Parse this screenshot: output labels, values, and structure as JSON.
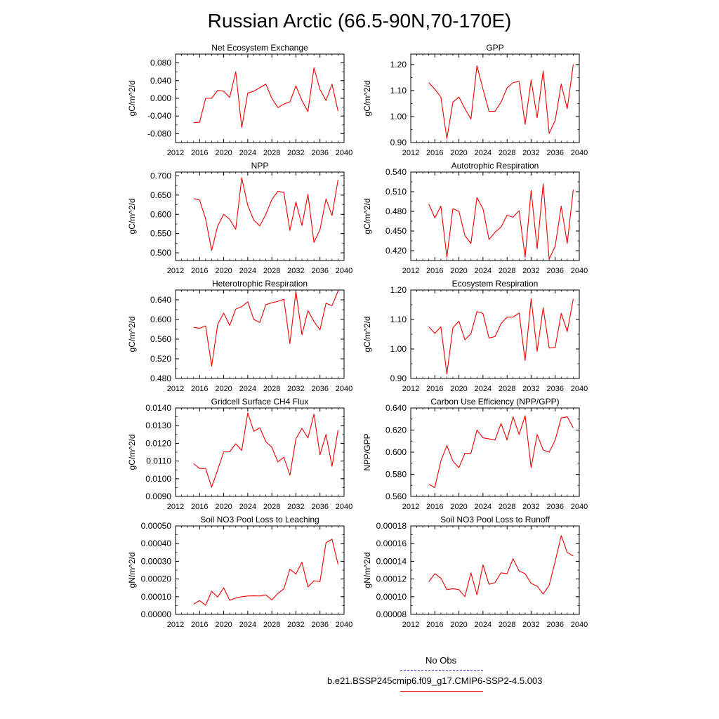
{
  "page": {
    "title": "Russian Arctic (66.5-90N,70-170E)"
  },
  "legend": {
    "obs_label": "No Obs",
    "obs_color": "#3333cc",
    "model_label": "b.e21.BSSP245cmip6.f09_g17.CMIP6-SSP2-4.5.003",
    "model_color": "#ee0000"
  },
  "x_axis": {
    "ticks": [
      2012,
      2016,
      2020,
      2024,
      2028,
      2032,
      2036,
      2040
    ],
    "range": [
      2012,
      2040
    ]
  },
  "chart_data": [
    {
      "type": "line",
      "title": "Net Ecosystem Exchange",
      "ylabel": "gC/m^2/d",
      "ylim": [
        -0.1,
        0.1
      ],
      "yticks": [
        "0.080",
        "0.040",
        "0.000",
        "-0.040",
        "-0.080"
      ],
      "ytick_values": [
        0.08,
        0.04,
        0.0,
        -0.04,
        -0.08
      ],
      "x": [
        2015,
        2016,
        2017,
        2018,
        2019,
        2020,
        2021,
        2022,
        2023,
        2024,
        2025,
        2026,
        2027,
        2028,
        2029,
        2030,
        2031,
        2032,
        2033,
        2034,
        2035,
        2036,
        2037,
        2038,
        2039
      ],
      "series": [
        {
          "values": [
            -0.055,
            -0.054,
            0.0,
            0.0,
            0.018,
            0.016,
            0.002,
            0.06,
            -0.066,
            0.012,
            0.016,
            0.024,
            0.032,
            0.0,
            -0.021,
            -0.013,
            -0.008,
            0.028,
            -0.005,
            -0.03,
            0.069,
            0.02,
            -0.005,
            0.032,
            -0.029
          ]
        }
      ]
    },
    {
      "type": "line",
      "title": "GPP",
      "ylabel": "gC/m^2/d",
      "ylim": [
        0.9,
        1.24
      ],
      "yticks": [
        "1.20",
        "1.10",
        "1.00",
        "0.90"
      ],
      "ytick_values": [
        1.2,
        1.1,
        1.0,
        0.9
      ],
      "x": [
        2015,
        2016,
        2017,
        2018,
        2019,
        2020,
        2021,
        2022,
        2023,
        2024,
        2025,
        2026,
        2027,
        2028,
        2029,
        2030,
        2031,
        2032,
        2033,
        2034,
        2035,
        2036,
        2037,
        2038,
        2039
      ],
      "series": [
        {
          "values": [
            1.13,
            1.105,
            1.075,
            0.915,
            1.055,
            1.075,
            1.03,
            0.99,
            1.195,
            1.105,
            1.02,
            1.02,
            1.055,
            1.11,
            1.13,
            1.135,
            0.97,
            1.14,
            0.995,
            1.175,
            0.935,
            0.985,
            1.125,
            1.03,
            1.2
          ]
        }
      ]
    },
    {
      "type": "line",
      "title": "NPP",
      "ylabel": "gC/m^2/d",
      "ylim": [
        0.48,
        0.71
      ],
      "yticks": [
        "0.700",
        "0.650",
        "0.600",
        "0.550",
        "0.500"
      ],
      "ytick_values": [
        0.7,
        0.65,
        0.6,
        0.55,
        0.5
      ],
      "x": [
        2015,
        2016,
        2017,
        2018,
        2019,
        2020,
        2021,
        2022,
        2023,
        2024,
        2025,
        2026,
        2027,
        2028,
        2029,
        2030,
        2031,
        2032,
        2033,
        2034,
        2035,
        2036,
        2037,
        2038,
        2039
      ],
      "series": [
        {
          "values": [
            0.641,
            0.637,
            0.588,
            0.506,
            0.57,
            0.6,
            0.587,
            0.561,
            0.695,
            0.623,
            0.585,
            0.57,
            0.6,
            0.638,
            0.66,
            0.657,
            0.558,
            0.632,
            0.571,
            0.652,
            0.527,
            0.56,
            0.64,
            0.597,
            0.69
          ]
        }
      ]
    },
    {
      "type": "line",
      "title": "Autotrophic Respiration",
      "ylabel": "gC/m^2/d",
      "ylim": [
        0.405,
        0.54
      ],
      "yticks": [
        "0.540",
        "0.510",
        "0.480",
        "0.450",
        "0.420"
      ],
      "ytick_values": [
        0.54,
        0.51,
        0.48,
        0.45,
        0.42
      ],
      "x": [
        2015,
        2016,
        2017,
        2018,
        2019,
        2020,
        2021,
        2022,
        2023,
        2024,
        2025,
        2026,
        2027,
        2028,
        2029,
        2030,
        2031,
        2032,
        2033,
        2034,
        2035,
        2036,
        2037,
        2038,
        2039
      ],
      "series": [
        {
          "values": [
            0.491,
            0.47,
            0.488,
            0.41,
            0.484,
            0.48,
            0.443,
            0.431,
            0.501,
            0.484,
            0.437,
            0.448,
            0.456,
            0.474,
            0.471,
            0.481,
            0.41,
            0.512,
            0.423,
            0.522,
            0.407,
            0.427,
            0.488,
            0.431,
            0.513
          ]
        }
      ]
    },
    {
      "type": "line",
      "title": "Heterotrophic Respiration",
      "ylabel": "gC/m^2/d",
      "ylim": [
        0.48,
        0.66
      ],
      "yticks": [
        "0.640",
        "0.600",
        "0.560",
        "0.520",
        "0.480"
      ],
      "ytick_values": [
        0.64,
        0.6,
        0.56,
        0.52,
        0.48
      ],
      "x": [
        2015,
        2016,
        2017,
        2018,
        2019,
        2020,
        2021,
        2022,
        2023,
        2024,
        2025,
        2026,
        2027,
        2028,
        2029,
        2030,
        2031,
        2032,
        2033,
        2034,
        2035,
        2036,
        2037,
        2038,
        2039
      ],
      "series": [
        {
          "values": [
            0.584,
            0.582,
            0.587,
            0.505,
            0.59,
            0.613,
            0.588,
            0.621,
            0.626,
            0.636,
            0.6,
            0.594,
            0.63,
            0.634,
            0.637,
            0.641,
            0.551,
            0.657,
            0.569,
            0.618,
            0.596,
            0.579,
            0.633,
            0.628,
            0.658
          ]
        }
      ]
    },
    {
      "type": "line",
      "title": "Ecosystem Respiration",
      "ylabel": "gC/m^2/d",
      "ylim": [
        0.9,
        1.2
      ],
      "yticks": [
        "1.20",
        "1.10",
        "1.00",
        "0.90"
      ],
      "ytick_values": [
        1.2,
        1.1,
        1.0,
        0.9
      ],
      "x": [
        2015,
        2016,
        2017,
        2018,
        2019,
        2020,
        2021,
        2022,
        2023,
        2024,
        2025,
        2026,
        2027,
        2028,
        2029,
        2030,
        2031,
        2032,
        2033,
        2034,
        2035,
        2036,
        2037,
        2038,
        2039
      ],
      "series": [
        {
          "values": [
            1.075,
            1.053,
            1.075,
            0.915,
            1.072,
            1.094,
            1.031,
            1.052,
            1.127,
            1.12,
            1.037,
            1.042,
            1.086,
            1.108,
            1.108,
            1.122,
            0.961,
            1.17,
            0.992,
            1.14,
            1.003,
            1.005,
            1.121,
            1.059,
            1.17
          ]
        }
      ]
    },
    {
      "type": "line",
      "title": "Gridcell Surface CH4 Flux",
      "ylabel": "gC/m^2/d",
      "ylim": [
        0.009,
        0.014
      ],
      "yticks": [
        "0.0140",
        "0.0130",
        "0.0120",
        "0.0110",
        "0.0100",
        "0.0090"
      ],
      "ytick_values": [
        0.014,
        0.013,
        0.012,
        0.011,
        0.01,
        0.009
      ],
      "x": [
        2015,
        2016,
        2017,
        2018,
        2019,
        2020,
        2021,
        2022,
        2023,
        2024,
        2025,
        2026,
        2027,
        2028,
        2029,
        2030,
        2031,
        2032,
        2033,
        2034,
        2035,
        2036,
        2037,
        2038,
        2039
      ],
      "series": [
        {
          "values": [
            0.01085,
            0.01058,
            0.01058,
            0.00952,
            0.0105,
            0.01152,
            0.01152,
            0.01198,
            0.0116,
            0.01372,
            0.01268,
            0.01288,
            0.0121,
            0.01178,
            0.01095,
            0.01122,
            0.0102,
            0.01225,
            0.01285,
            0.0123,
            0.01365,
            0.01135,
            0.0125,
            0.0107,
            0.01275
          ]
        }
      ]
    },
    {
      "type": "line",
      "title": "Carbon Use Efficiency (NPP/GPP)",
      "ylabel": "NPP/GPP",
      "ylim": [
        0.56,
        0.64
      ],
      "yticks": [
        "0.640",
        "0.620",
        "0.600",
        "0.580",
        "0.560"
      ],
      "ytick_values": [
        0.64,
        0.62,
        0.6,
        0.58,
        0.56
      ],
      "x": [
        2015,
        2016,
        2017,
        2018,
        2019,
        2020,
        2021,
        2022,
        2023,
        2024,
        2025,
        2026,
        2027,
        2028,
        2029,
        2030,
        2031,
        2032,
        2033,
        2034,
        2035,
        2036,
        2037,
        2038,
        2039
      ],
      "series": [
        {
          "values": [
            0.571,
            0.568,
            0.592,
            0.606,
            0.592,
            0.586,
            0.599,
            0.599,
            0.62,
            0.613,
            0.612,
            0.611,
            0.626,
            0.611,
            0.632,
            0.616,
            0.633,
            0.586,
            0.616,
            0.602,
            0.6,
            0.611,
            0.631,
            0.632,
            0.622
          ]
        }
      ]
    },
    {
      "type": "line",
      "title": "Soil NO3 Pool Loss to Leaching",
      "ylabel": "gN/m^2/d",
      "ylim": [
        0.0,
        0.0005
      ],
      "yticks": [
        "0.00050",
        "0.00040",
        "0.00030",
        "0.00020",
        "0.00010",
        "0.00000"
      ],
      "ytick_values": [
        0.0005,
        0.0004,
        0.0003,
        0.0002,
        0.0001,
        0.0
      ],
      "x": [
        2015,
        2016,
        2017,
        2018,
        2019,
        2020,
        2021,
        2022,
        2023,
        2024,
        2025,
        2026,
        2027,
        2028,
        2029,
        2030,
        2031,
        2032,
        2033,
        2034,
        2035,
        2036,
        2037,
        2038,
        2039
      ],
      "series": [
        {
          "values": [
            5.8e-05,
            7.8e-05,
            5.2e-05,
            0.00013,
            9.8e-05,
            0.00015,
            8e-05,
            9.2e-05,
            0.0001,
            0.000104,
            0.000105,
            0.000104,
            0.00011,
            8.2e-05,
            0.000118,
            0.000145,
            0.000255,
            0.000228,
            0.000295,
            0.000155,
            0.00019,
            0.000185,
            0.000405,
            0.000425,
            0.000283
          ]
        }
      ]
    },
    {
      "type": "line",
      "title": "Soil NO3 Pool Loss to Runoff",
      "ylabel": "gN/m^2/d",
      "ylim": [
        8e-05,
        0.00018
      ],
      "yticks": [
        "0.00018",
        "0.00016",
        "0.00014",
        "0.00012",
        "0.00010",
        "0.00008"
      ],
      "ytick_values": [
        0.00018,
        0.00016,
        0.00014,
        0.00012,
        0.0001,
        8e-05
      ],
      "x": [
        2015,
        2016,
        2017,
        2018,
        2019,
        2020,
        2021,
        2022,
        2023,
        2024,
        2025,
        2026,
        2027,
        2028,
        2029,
        2030,
        2031,
        2032,
        2033,
        2034,
        2035,
        2036,
        2037,
        2038,
        2039
      ],
      "series": [
        {
          "values": [
            0.000117,
            0.000126,
            0.000121,
            0.000108,
            0.000109,
            0.000108,
            0.0001,
            0.000127,
            0.000102,
            0.000136,
            0.000114,
            0.000116,
            0.000127,
            0.000126,
            0.000143,
            0.000129,
            0.000126,
            0.000115,
            0.000112,
            0.000103,
            0.000113,
            0.00014,
            0.000169,
            0.00015,
            0.000146
          ]
        }
      ]
    }
  ]
}
